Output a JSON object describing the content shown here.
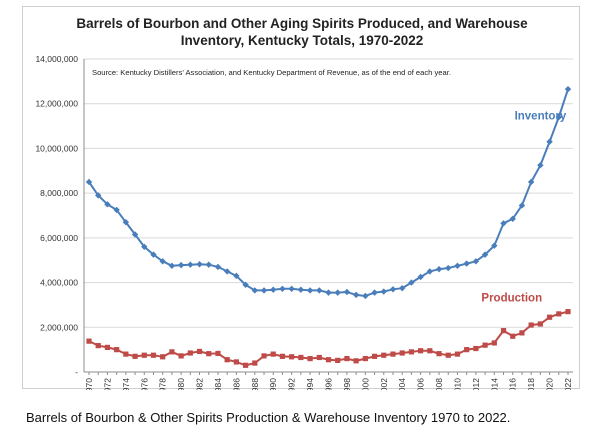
{
  "chart_data": {
    "type": "line",
    "title_line1": "Barrels of Bourbon and Other Aging Spirits Produced, and Warehouse",
    "title_line2": "Inventory, Kentucky Totals, 1970-2022",
    "source_note": "Source: Kentucky Distillers' Association, and Kentucky Department of Revenue, as of the end of each year.",
    "ylim": [
      0,
      14000000
    ],
    "y_ticks": [
      0,
      2000000,
      4000000,
      6000000,
      8000000,
      10000000,
      12000000,
      14000000
    ],
    "y_tick_labels": [
      "-",
      "2,000,000",
      "4,000,000",
      "6,000,000",
      "8,000,000",
      "10,000,000",
      "12,000,000",
      "14,000,000"
    ],
    "x_tick_labels": [
      "1970",
      "1972",
      "1974",
      "1976",
      "1978",
      "1980",
      "1982",
      "1984",
      "1986",
      "1988",
      "1990",
      "1992",
      "1994",
      "1996",
      "1998",
      "2000",
      "2002",
      "2004",
      "2006",
      "2008",
      "2010",
      "2012",
      "2014",
      "2016",
      "2018",
      "2020",
      "2022"
    ],
    "x": [
      1970,
      1971,
      1972,
      1973,
      1974,
      1975,
      1976,
      1977,
      1978,
      1979,
      1980,
      1981,
      1982,
      1983,
      1984,
      1985,
      1986,
      1987,
      1988,
      1989,
      1990,
      1991,
      1992,
      1993,
      1994,
      1995,
      1996,
      1997,
      1998,
      1999,
      2000,
      2001,
      2002,
      2003,
      2004,
      2005,
      2006,
      2007,
      2008,
      2009,
      2010,
      2011,
      2012,
      2013,
      2014,
      2015,
      2016,
      2017,
      2018,
      2019,
      2020,
      2021,
      2022
    ],
    "series": [
      {
        "name": "Inventory",
        "color": "#4a7ebb",
        "marker": "diamond",
        "values": [
          8500000,
          7900000,
          7500000,
          7250000,
          6700000,
          6150000,
          5600000,
          5250000,
          4950000,
          4750000,
          4780000,
          4800000,
          4820000,
          4800000,
          4700000,
          4500000,
          4300000,
          3900000,
          3650000,
          3650000,
          3680000,
          3720000,
          3720000,
          3680000,
          3650000,
          3650000,
          3550000,
          3550000,
          3580000,
          3450000,
          3400000,
          3550000,
          3600000,
          3700000,
          3750000,
          4000000,
          4250000,
          4500000,
          4600000,
          4650000,
          4750000,
          4850000,
          4950000,
          5250000,
          5650000,
          6650000,
          6850000,
          7450000,
          8500000,
          9250000,
          10300000,
          11400000,
          12650000
        ]
      },
      {
        "name": "Production",
        "color": "#be4b48",
        "marker": "square",
        "values": [
          1380000,
          1180000,
          1100000,
          1000000,
          800000,
          700000,
          750000,
          750000,
          680000,
          900000,
          720000,
          850000,
          920000,
          820000,
          830000,
          550000,
          450000,
          300000,
          400000,
          720000,
          800000,
          700000,
          680000,
          650000,
          600000,
          650000,
          550000,
          520000,
          600000,
          500000,
          600000,
          700000,
          750000,
          800000,
          850000,
          900000,
          950000,
          950000,
          820000,
          750000,
          800000,
          1000000,
          1050000,
          1200000,
          1300000,
          1850000,
          1600000,
          1750000,
          2100000,
          2150000,
          2450000,
          2600000,
          2700000
        ]
      }
    ]
  },
  "caption": "Barrels of Bourbon & Other Spirits Production & Warehouse Inventory 1970 to 2022."
}
